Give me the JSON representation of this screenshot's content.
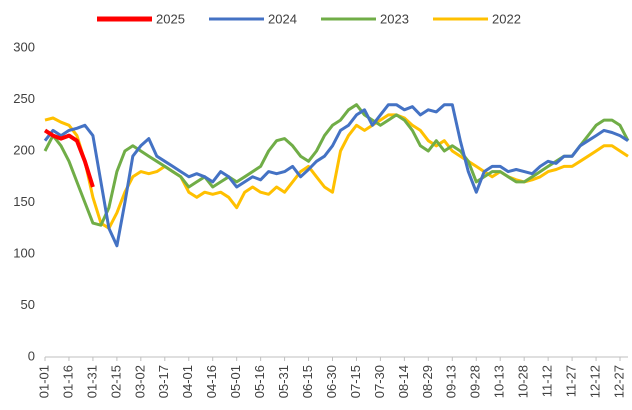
{
  "chart_data": {
    "type": "line",
    "categories": [
      "01-01",
      null,
      null,
      "01-16",
      null,
      null,
      "01-31",
      null,
      null,
      "02-15",
      null,
      null,
      "03-02",
      null,
      null,
      "03-17",
      null,
      null,
      "04-01",
      null,
      null,
      "04-16",
      null,
      null,
      "05-01",
      null,
      null,
      "05-16",
      null,
      null,
      "05-31",
      null,
      null,
      "06-15",
      null,
      null,
      "06-30",
      null,
      null,
      "07-15",
      null,
      null,
      "07-30",
      null,
      null,
      "08-14",
      null,
      null,
      "08-29",
      null,
      null,
      "09-13",
      null,
      null,
      "09-28",
      null,
      null,
      "10-13",
      null,
      null,
      "10-28",
      null,
      null,
      "11-12",
      null,
      null,
      "11-27",
      null,
      null,
      "12-12",
      null,
      null,
      "12-27",
      null
    ],
    "series": [
      {
        "name": "2025",
        "color": "#ff0000",
        "values": [
          220,
          215,
          212,
          215,
          210,
          190,
          165,
          null,
          null,
          null,
          null,
          null,
          null,
          null,
          null,
          null,
          null,
          null,
          null,
          null,
          null,
          null,
          null,
          null,
          null,
          null,
          null,
          null,
          null,
          null,
          null,
          null,
          null,
          null,
          null,
          null,
          null,
          null,
          null,
          null,
          null,
          null,
          null,
          null,
          null,
          null,
          null,
          null,
          null,
          null,
          null,
          null,
          null,
          null,
          null,
          null,
          null,
          null,
          null,
          null,
          null,
          null,
          null,
          null,
          null,
          null,
          null,
          null,
          null,
          null,
          null,
          null,
          null,
          null
        ]
      },
      {
        "name": "2024",
        "color": "#4472c4",
        "values": [
          210,
          220,
          215,
          220,
          222,
          225,
          215,
          170,
          125,
          108,
          150,
          195,
          205,
          212,
          195,
          190,
          185,
          180,
          175,
          178,
          175,
          170,
          180,
          175,
          165,
          170,
          175,
          172,
          180,
          178,
          180,
          185,
          175,
          182,
          190,
          195,
          205,
          220,
          225,
          235,
          240,
          225,
          235,
          245,
          245,
          240,
          243,
          235,
          240,
          238,
          245,
          245,
          210,
          180,
          160,
          180,
          185,
          185,
          180,
          182,
          180,
          178,
          185,
          190,
          188,
          195,
          195,
          205,
          210,
          215,
          220,
          218,
          215,
          210
        ]
      },
      {
        "name": "2023",
        "color": "#70ad47",
        "values": [
          200,
          215,
          205,
          190,
          170,
          150,
          130,
          128,
          145,
          180,
          200,
          205,
          200,
          195,
          190,
          185,
          180,
          175,
          165,
          170,
          175,
          165,
          170,
          175,
          170,
          175,
          180,
          185,
          200,
          210,
          212,
          205,
          195,
          190,
          200,
          215,
          225,
          230,
          240,
          245,
          235,
          230,
          225,
          230,
          235,
          230,
          220,
          205,
          200,
          210,
          200,
          205,
          200,
          190,
          170,
          175,
          180,
          180,
          175,
          170,
          170,
          175,
          180,
          185,
          190,
          195,
          195,
          205,
          215,
          225,
          230,
          230,
          225,
          210
        ]
      },
      {
        "name": "2022",
        "color": "#ffc000",
        "values": [
          230,
          232,
          228,
          225,
          215,
          190,
          155,
          130,
          125,
          140,
          160,
          175,
          180,
          178,
          180,
          185,
          180,
          175,
          160,
          155,
          160,
          158,
          160,
          155,
          145,
          160,
          165,
          160,
          158,
          165,
          160,
          170,
          180,
          185,
          175,
          165,
          160,
          200,
          215,
          225,
          220,
          225,
          230,
          235,
          235,
          232,
          225,
          220,
          210,
          205,
          210,
          200,
          195,
          190,
          185,
          180,
          175,
          180,
          175,
          172,
          170,
          172,
          175,
          180,
          182,
          185,
          185,
          190,
          195,
          200,
          205,
          205,
          200,
          195
        ]
      }
    ],
    "ylim": [
      0,
      300
    ],
    "yticks": [
      0,
      50,
      100,
      150,
      200,
      250,
      300
    ],
    "grid": false,
    "legend": "top"
  }
}
